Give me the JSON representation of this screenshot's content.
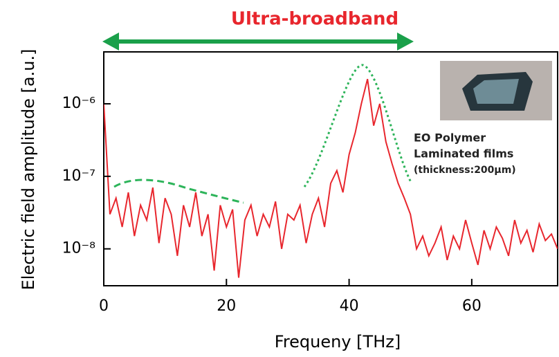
{
  "chart_data": {
    "type": "line",
    "title": "Ultra-broadband",
    "x_label": "Frequeny [THz]",
    "y_label": "Electric field amplitude [a.u.]",
    "annotations": [
      "EO Polymer",
      "Laminated films",
      "(thickness:200μm)"
    ],
    "color": "#e8262d",
    "log_y": true,
    "x": [
      0,
      1,
      2,
      3,
      4,
      5,
      6,
      7,
      8,
      9,
      10,
      11,
      12,
      13,
      14,
      15,
      16,
      17,
      18,
      19,
      20,
      21,
      22,
      23,
      24,
      25,
      26,
      27,
      28,
      29,
      30,
      31,
      32,
      33,
      34,
      35,
      36,
      37,
      38,
      39,
      40,
      41,
      42,
      43,
      44,
      45,
      46,
      47,
      48,
      49,
      50,
      51,
      52,
      53,
      54,
      55,
      56,
      57,
      58,
      59,
      60,
      61,
      62,
      63,
      64,
      65,
      66,
      67,
      68,
      69,
      70,
      71,
      72,
      73,
      74
    ],
    "values": [
      1e-06,
      3e-08,
      5e-08,
      2e-08,
      6e-08,
      1.5e-08,
      4e-08,
      2.5e-08,
      7e-08,
      1.2e-08,
      5e-08,
      3e-08,
      8e-09,
      4e-08,
      2e-08,
      6e-08,
      1.5e-08,
      3e-08,
      5e-09,
      4e-08,
      2e-08,
      3.5e-08,
      4e-09,
      2.5e-08,
      4e-08,
      1.5e-08,
      3e-08,
      2e-08,
      4.5e-08,
      1e-08,
      3e-08,
      2.5e-08,
      4e-08,
      1.2e-08,
      3e-08,
      5e-08,
      2e-08,
      8e-08,
      1.2e-07,
      6e-08,
      2e-07,
      4e-07,
      1e-06,
      2.2e-06,
      5e-07,
      1e-06,
      3e-07,
      1.5e-07,
      8e-08,
      5e-08,
      3e-08,
      1e-08,
      1.5e-08,
      8e-09,
      1.2e-08,
      2e-08,
      7e-09,
      1.5e-08,
      1e-08,
      2.5e-08,
      1.2e-08,
      6e-09,
      1.8e-08,
      1e-08,
      2e-08,
      1.4e-08,
      8e-09,
      2.5e-08,
      1.2e-08,
      1.8e-08,
      9e-09,
      2.2e-08,
      1.3e-08,
      1.6e-08,
      1e-08
    ],
    "xlim": [
      0,
      74
    ],
    "xticks": [
      0,
      20,
      40,
      60
    ],
    "ylim": [
      3.1e-09,
      5.2e-06
    ],
    "yticks": [
      {
        "value": 1e-08,
        "label": "10⁻⁸"
      },
      {
        "value": 1e-07,
        "label": "10⁻⁷"
      },
      {
        "value": 1e-06,
        "label": "10⁻⁶"
      }
    ]
  }
}
